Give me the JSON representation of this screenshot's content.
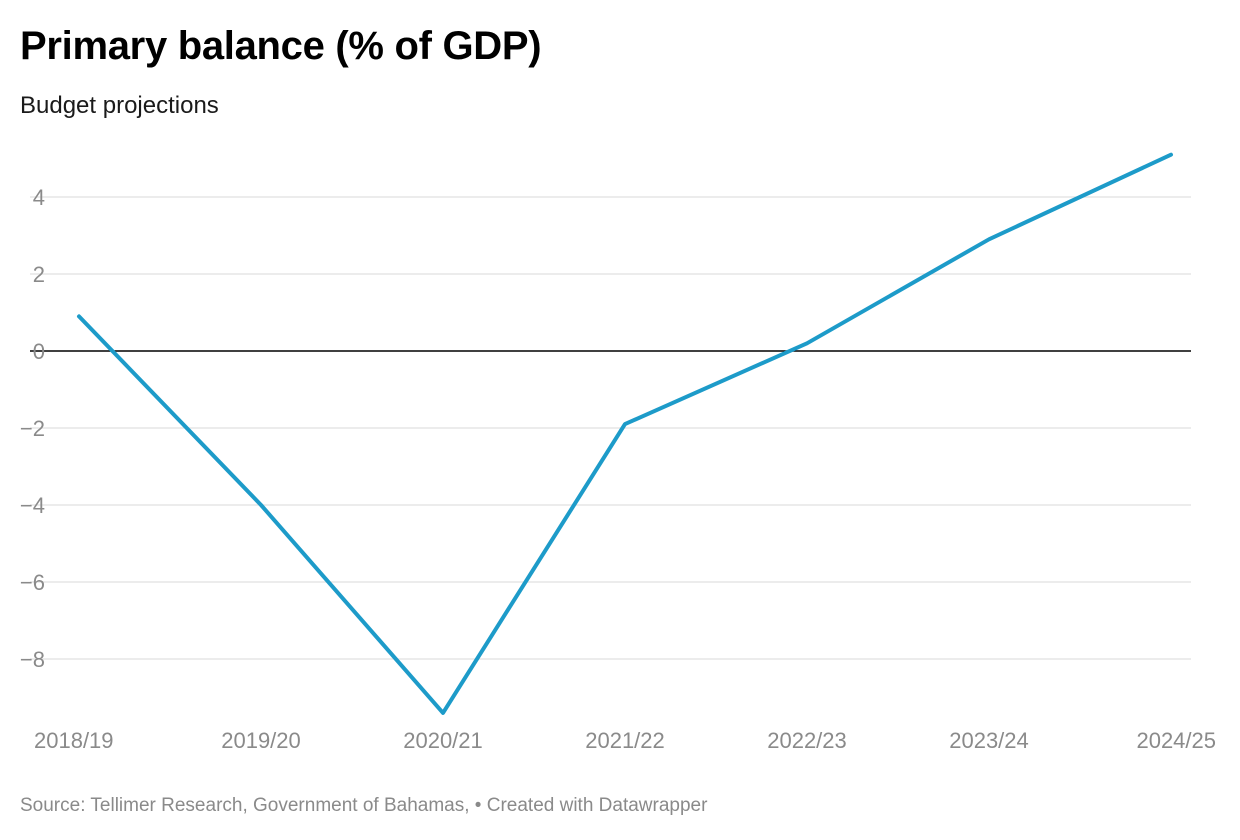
{
  "title": "Primary balance (% of GDP)",
  "subtitle": "Budget projections",
  "footer": {
    "source": "Source: Tellimer Research, Government of Bahamas,",
    "separator": "•",
    "credit": "Created with Datawrapper"
  },
  "chart_data": {
    "type": "line",
    "title": "Primary balance (% of GDP)",
    "subtitle": "Budget projections",
    "xlabel": "",
    "ylabel": "",
    "categories": [
      "2018/19",
      "2019/20",
      "2020/21",
      "2021/22",
      "2022/23",
      "2023/24",
      "2024/25"
    ],
    "series": [
      {
        "values": [
          0.9,
          -4.0,
          -9.4,
          -1.9,
          0.2,
          2.9,
          5.1
        ]
      }
    ],
    "y_ticks": [
      4,
      2,
      0,
      -2,
      -4,
      -6,
      -8
    ],
    "y_tick_labels": [
      "4",
      "2",
      "0",
      "−2",
      "−4",
      "−6",
      "−8"
    ],
    "ylim": [
      -9.4,
      5.1
    ],
    "grid": true,
    "zero_line": true,
    "legend": "none",
    "colors": {
      "line": "#1d9bc9",
      "grid": "#e0e0e0",
      "zero": "#000000",
      "labels": "#8a8a8a"
    }
  }
}
